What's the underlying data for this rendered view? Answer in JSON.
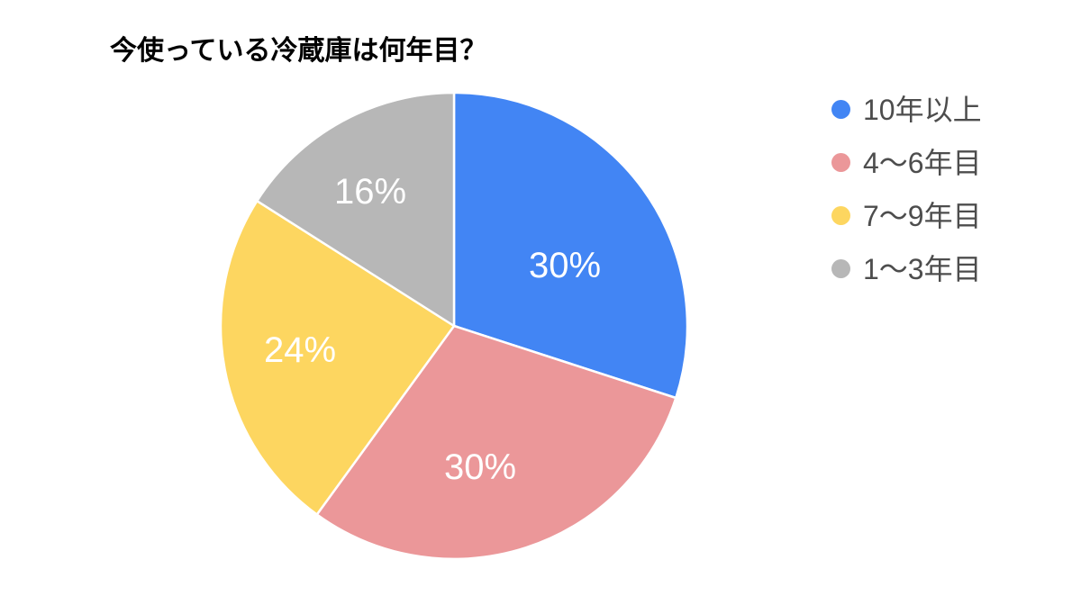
{
  "chart_data": {
    "type": "pie",
    "title": "今使っている冷蔵庫は何年目？",
    "legend_position": "right",
    "direction": "clockwise",
    "start_angle_deg": 0,
    "background_color": "#ffffff",
    "title_color": "#000000",
    "slice_label_color": "#ffffff",
    "legend_text_color": "#4d4d4d",
    "categories": [
      "10年以上",
      "4〜6年目",
      "7〜9年目",
      "1〜3年目"
    ],
    "values": [
      30,
      30,
      24,
      16
    ],
    "slices": [
      {
        "label": "10年以上",
        "value": 30,
        "percent_label": "30%",
        "color": "#4285F4"
      },
      {
        "label": "4〜6年目",
        "value": 30,
        "percent_label": "30%",
        "color": "#EB9799"
      },
      {
        "label": "7〜9年目",
        "value": 24,
        "percent_label": "24%",
        "color": "#FDD660"
      },
      {
        "label": "1〜3年目",
        "value": 16,
        "percent_label": "16%",
        "color": "#B7B7B7"
      }
    ]
  }
}
